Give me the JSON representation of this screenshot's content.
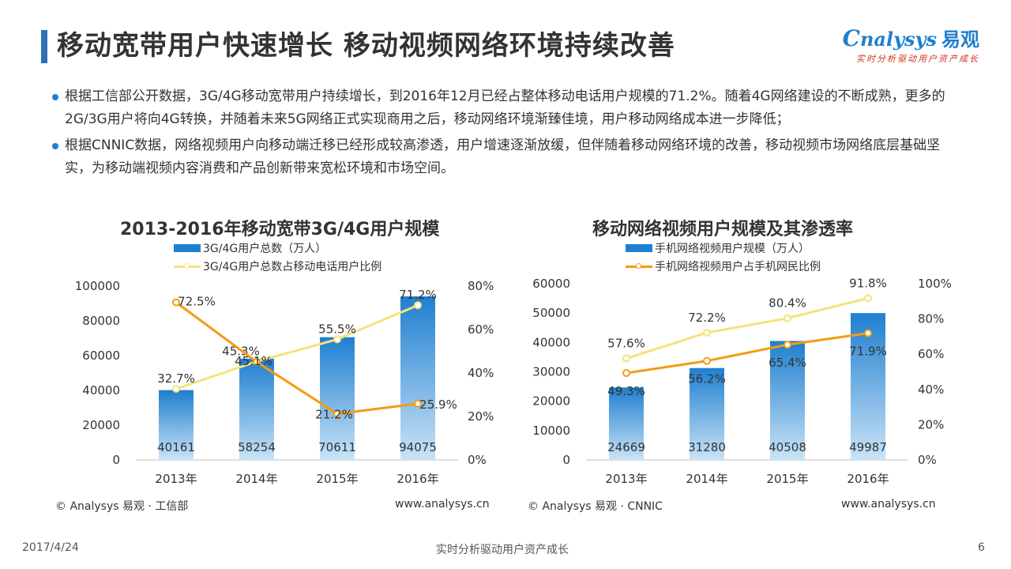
{
  "page": {
    "title": "移动宽带用户快速增长 移动视频网络环境持续改善",
    "logo_text": "nalysys",
    "logo_cn": "易观",
    "logo_tagline": "实时分析驱动用户资产成长",
    "bullets": [
      "根据工信部公开数据，3G/4G移动宽带用户持续增长，到2016年12月已经占整体移动电话用户规模的71.2%。随着4G网络建设的不断成熟，更多的2G/3G用户将向4G转换，并随着未来5G网络正式实现商用之后，移动网络环境渐臻佳境，用户移动网络成本进一步降低；",
      "根据CNNIC数据，网络视频用户向移动端迁移已经形成较高渗透，用户增速逐渐放缓，但伴随着移动网络环境的改善，移动视频市场网络底层基础坚实，为移动端视频内容消费和产品创新带来宽松环境和市场空间。"
    ],
    "footer": {
      "date": "2017/4/24",
      "tagline": "实时分析驱动用户资产成长",
      "page_number": "6"
    }
  },
  "colors": {
    "accent": "#2f6fb5",
    "bar_top": "#1f7fd0",
    "bar_bottom": "#c9e3f7",
    "orange": "#f39c12",
    "yellow": "#f7e27a"
  },
  "chart_data": [
    {
      "type": "bar",
      "title": "2013-2016年移动宽带3G/4G用户规模",
      "categories": [
        "2013年",
        "2014年",
        "2015年",
        "2016年"
      ],
      "y_left": {
        "range": [
          0,
          100000
        ],
        "ticks": [
          "0",
          "20000",
          "40000",
          "60000",
          "80000",
          "100000"
        ]
      },
      "y_right": {
        "range": [
          0,
          80
        ],
        "ticks": [
          "0%",
          "20%",
          "40%",
          "60%",
          "80%"
        ]
      },
      "grid": false,
      "legend_position": "top",
      "series": [
        {
          "name": "3G/4G用户总数（万人）",
          "kind": "bar",
          "axis": "left",
          "values": [
            40161,
            58254,
            70611,
            94075
          ],
          "labels": [
            "40161",
            "58254",
            "70611",
            "94075"
          ]
        },
        {
          "name": "3G/4G用户总数占移动电话用户比例",
          "kind": "line",
          "axis": "right",
          "color": "yellow",
          "values": [
            32.7,
            45.3,
            55.5,
            71.2
          ],
          "labels": [
            "32.7%",
            "45.3%",
            "55.5%",
            "71.2%"
          ]
        },
        {
          "name": "",
          "kind": "line",
          "axis": "right",
          "color": "orange",
          "values": [
            72.5,
            45.1,
            21.2,
            25.9
          ],
          "labels": [
            "72.5%",
            "45.1%",
            "21.2%",
            "25.9%"
          ]
        }
      ],
      "source": "© Analysys 易观 · 工信部",
      "website": "www.analysys.cn"
    },
    {
      "type": "bar",
      "title": "移动网络视频用户规模及其渗透率",
      "categories": [
        "2013年",
        "2014年",
        "2015年",
        "2016年"
      ],
      "y_left": {
        "range": [
          0,
          60000
        ],
        "ticks": [
          "0",
          "10000",
          "20000",
          "30000",
          "40000",
          "50000",
          "60000"
        ]
      },
      "y_right": {
        "range": [
          0,
          100
        ],
        "ticks": [
          "0%",
          "20%",
          "40%",
          "60%",
          "80%",
          "100%"
        ]
      },
      "grid": false,
      "legend_position": "top",
      "series": [
        {
          "name": "手机网络视频用户规模（万人）",
          "kind": "bar",
          "axis": "left",
          "values": [
            24669,
            31280,
            40508,
            49987
          ],
          "labels": [
            "24669",
            "31280",
            "40508",
            "49987"
          ]
        },
        {
          "name": "手机网络视频用户占手机网民比例",
          "kind": "line",
          "axis": "right",
          "color": "orange",
          "values": [
            49.3,
            56.2,
            65.4,
            71.9
          ],
          "labels": [
            "49.3%",
            "56.2%",
            "65.4%",
            "71.9%"
          ]
        },
        {
          "name": "",
          "kind": "line",
          "axis": "right",
          "color": "yellow",
          "values": [
            57.6,
            72.2,
            80.4,
            91.8
          ],
          "labels": [
            "57.6%",
            "72.2%",
            "80.4%",
            "91.8%"
          ]
        }
      ],
      "source": "© Analysys 易观 · CNNIC",
      "website": "www.analysys.cn"
    }
  ]
}
